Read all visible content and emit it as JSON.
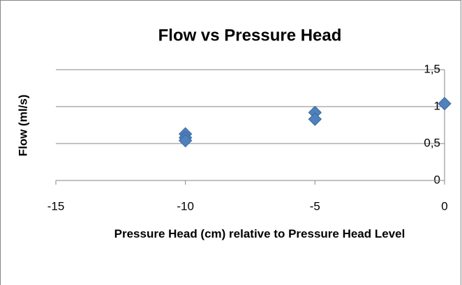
{
  "chart_data": {
    "type": "scatter",
    "title": "Flow vs Pressure Head",
    "x_label": "Pressure Head (cm) relative to Pressure Head Level",
    "y_label": "Flow (ml/s)",
    "series": [
      {
        "name": "Flow",
        "color": "#4f81bd",
        "x": [
          -10,
          -10,
          -10,
          -5,
          -5,
          0
        ],
        "values": [
          0.63,
          0.58,
          0.54,
          0.92,
          0.83,
          1.04
        ]
      }
    ],
    "xlim": [
      -15,
      0
    ],
    "xticks": [
      -15,
      -10,
      -5,
      0
    ],
    "ylim": [
      0,
      1.5
    ],
    "yticks": [
      0,
      {
        "value": 0.5,
        "label": "0,5"
      },
      1,
      {
        "value": 1.5,
        "label": "1,5"
      }
    ],
    "grid": true
  }
}
